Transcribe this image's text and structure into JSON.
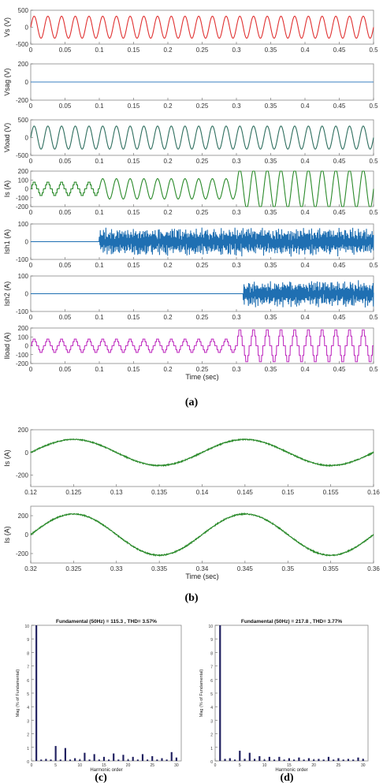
{
  "chart_data": [
    {
      "type": "line",
      "ylabel": "Vs (V)",
      "xlim": [
        0,
        0.5
      ],
      "ylim": [
        -500,
        500
      ],
      "yticks": [
        -500,
        0,
        500
      ],
      "xticks": [
        0,
        0.05,
        0.1,
        0.15,
        0.2,
        0.25,
        0.3,
        0.35,
        0.4,
        0.45,
        0.5
      ],
      "xticklabels": [
        "0",
        "0.05",
        "0.1",
        "0.15",
        "0.2",
        "0.25",
        "0.3",
        "0.35",
        "0.4",
        "0.45",
        "0.5"
      ],
      "color": "#e03030",
      "waveform": "sine",
      "freq_hz": 50,
      "amplitude": [
        [
          0,
          0.5,
          325
        ]
      ],
      "noise": 0,
      "start": 0
    },
    {
      "type": "line",
      "ylabel": "Vsag (V)",
      "xlim": [
        0,
        0.5
      ],
      "ylim": [
        -200,
        200
      ],
      "yticks": [
        -200,
        0,
        200
      ],
      "xticks": [
        0,
        0.05,
        0.1,
        0.15,
        0.2,
        0.25,
        0.3,
        0.35,
        0.4,
        0.45,
        0.5
      ],
      "xticklabels": [
        "0",
        "0.05",
        "0.1",
        "0.15",
        "0.2",
        "0.25",
        "0.3",
        "0.35",
        "0.4",
        "0.45",
        "0.5"
      ],
      "color": "#3a7fc0",
      "waveform": "flat",
      "value": 0,
      "start": 0
    },
    {
      "type": "line",
      "ylabel": "Vload (V)",
      "xlim": [
        0,
        0.5
      ],
      "ylim": [
        -500,
        500
      ],
      "yticks": [
        -500,
        0,
        500
      ],
      "xticks": [
        0,
        0.05,
        0.1,
        0.15,
        0.2,
        0.25,
        0.3,
        0.35,
        0.4,
        0.45,
        0.5
      ],
      "xticklabels": [
        "0",
        "0.05",
        "0.1",
        "0.15",
        "0.2",
        "0.25",
        "0.3",
        "0.35",
        "0.4",
        "0.45",
        "0.5"
      ],
      "color": "#2e6e5e",
      "waveform": "sine",
      "freq_hz": 50,
      "amplitude": [
        [
          0,
          0.5,
          325
        ]
      ],
      "noise": 0,
      "start": 0
    },
    {
      "type": "line",
      "ylabel": "Is (A)",
      "xlim": [
        0,
        0.5
      ],
      "ylim": [
        -200,
        200
      ],
      "yticks": [
        -200,
        -100,
        0,
        100,
        200
      ],
      "xticks": [
        0,
        0.05,
        0.1,
        0.15,
        0.2,
        0.25,
        0.3,
        0.35,
        0.4,
        0.45,
        0.5
      ],
      "xticklabels": [
        "0",
        "0.05",
        "0.1",
        "0.15",
        "0.2",
        "0.25",
        "0.3",
        "0.35",
        "0.4",
        "0.45",
        "0.5"
      ],
      "color": "#2a8a2a",
      "waveform": "segments",
      "segments": [
        {
          "t0": 0,
          "t1": 0.1,
          "kind": "square",
          "amp": 75
        },
        {
          "t0": 0.1,
          "t1": 0.3,
          "kind": "sine",
          "amp": 115
        },
        {
          "t0": 0.3,
          "t1": 0.5,
          "kind": "sine",
          "amp": 218
        }
      ],
      "freq_hz": 50,
      "start": 0
    },
    {
      "type": "line",
      "ylabel": "Ish1 (A)",
      "xlim": [
        0,
        0.5
      ],
      "ylim": [
        -100,
        100
      ],
      "yticks": [
        -100,
        0,
        100
      ],
      "xticks": [
        0,
        0.05,
        0.1,
        0.15,
        0.2,
        0.25,
        0.3,
        0.35,
        0.4,
        0.45,
        0.5
      ],
      "xticklabels": [
        "0",
        "0.05",
        "0.1",
        "0.15",
        "0.2",
        "0.25",
        "0.3",
        "0.35",
        "0.4",
        "0.45",
        "0.5"
      ],
      "color": "#1f6fb2",
      "waveform": "ripple",
      "start": 0.1,
      "amp": 80
    },
    {
      "type": "line",
      "ylabel": "Ish2 (A)",
      "xlim": [
        0,
        0.5
      ],
      "ylim": [
        -100,
        100
      ],
      "yticks": [
        -100,
        0,
        100
      ],
      "xticks": [
        0,
        0.05,
        0.1,
        0.15,
        0.2,
        0.25,
        0.3,
        0.35,
        0.4,
        0.45,
        0.5
      ],
      "xticklabels": [
        "0",
        "0.05",
        "0.1",
        "0.15",
        "0.2",
        "0.25",
        "0.3",
        "0.35",
        "0.4",
        "0.45",
        "0.5"
      ],
      "color": "#1f6fb2",
      "waveform": "ripple",
      "start": 0.31,
      "amp": 75
    },
    {
      "type": "line",
      "ylabel": "Iload (A)",
      "xlabel": "Time (sec)",
      "xlim": [
        0,
        0.5
      ],
      "ylim": [
        -200,
        200
      ],
      "yticks": [
        -200,
        -100,
        0,
        100,
        200
      ],
      "xticks": [
        0,
        0.05,
        0.1,
        0.15,
        0.2,
        0.25,
        0.3,
        0.35,
        0.4,
        0.45,
        0.5
      ],
      "xticklabels": [
        "0",
        "0.05",
        "0.1",
        "0.15",
        "0.2",
        "0.25",
        "0.3",
        "0.35",
        "0.4",
        "0.45",
        "0.5"
      ],
      "color": "#c030c0",
      "waveform": "segments",
      "segments": [
        {
          "t0": 0,
          "t1": 0.3,
          "kind": "square",
          "amp": 75
        },
        {
          "t0": 0.3,
          "t1": 0.5,
          "kind": "square",
          "amp": 180
        }
      ],
      "freq_hz": 50,
      "start": 0
    },
    {
      "type": "line",
      "ylabel": "Is (A)",
      "xlim": [
        0.12,
        0.16
      ],
      "ylim": [
        -300,
        200
      ],
      "yticks": [
        -200,
        0,
        200
      ],
      "xticks": [
        0.12,
        0.125,
        0.13,
        0.135,
        0.14,
        0.145,
        0.15,
        0.155,
        0.16
      ],
      "xticklabels": [
        "0.12",
        "0.125",
        "0.13",
        "0.135",
        "0.14",
        "0.145",
        "0.15",
        "0.155",
        "0.16"
      ],
      "color": "#2a8a2a",
      "waveform": "sine",
      "freq_hz": 50,
      "amplitude": [
        [
          0,
          1,
          115
        ]
      ],
      "noise": 4,
      "start": 0
    },
    {
      "type": "line",
      "ylabel": "Is (A)",
      "xlabel": "Time (sec)",
      "xlim": [
        0.32,
        0.36
      ],
      "ylim": [
        -300,
        300
      ],
      "yticks": [
        -200,
        0,
        200
      ],
      "xticks": [
        0.32,
        0.325,
        0.33,
        0.335,
        0.34,
        0.345,
        0.35,
        0.355,
        0.36
      ],
      "xticklabels": [
        "0.32",
        "0.325",
        "0.33",
        "0.335",
        "0.34",
        "0.345",
        "0.35",
        "0.355",
        "0.36"
      ],
      "color": "#2a8a2a",
      "waveform": "sine",
      "freq_hz": 50,
      "amplitude": [
        [
          0,
          1,
          218
        ]
      ],
      "noise": 5,
      "start": 0
    },
    {
      "type": "bar",
      "title": "Fundamental (50Hz) = 115.3 , THD= 3.57%",
      "xlabel": "Harmonic order",
      "ylabel": "Mag (% of Fundamental)",
      "xlim": [
        0,
        31
      ],
      "ylim": [
        0,
        10
      ],
      "yticks": [
        0,
        1,
        2,
        3,
        4,
        5,
        6,
        7,
        8,
        9,
        10
      ],
      "xticks": [
        0,
        5,
        10,
        15,
        20,
        25,
        30
      ],
      "categories": [
        1,
        2,
        3,
        4,
        5,
        6,
        7,
        8,
        9,
        10,
        11,
        12,
        13,
        14,
        15,
        16,
        17,
        18,
        19,
        20,
        21,
        22,
        23,
        24,
        25,
        26,
        27,
        28,
        29,
        30
      ],
      "values": [
        10,
        0.1,
        0.15,
        0.1,
        1.1,
        0.1,
        0.95,
        0.1,
        0.2,
        0.1,
        0.6,
        0.1,
        0.5,
        0.1,
        0.3,
        0.1,
        0.55,
        0.1,
        0.45,
        0.1,
        0.3,
        0.1,
        0.5,
        0.1,
        0.35,
        0.1,
        0.2,
        0.1,
        0.65,
        0.25
      ]
    },
    {
      "type": "bar",
      "title": "Fundamental (50Hz) = 217.8 , THD= 3.77%",
      "xlabel": "Harmonic order",
      "ylabel": "Mag (% of Fundamental)",
      "xlim": [
        0,
        31
      ],
      "ylim": [
        0,
        10
      ],
      "yticks": [
        0,
        1,
        2,
        3,
        4,
        5,
        6,
        7,
        8,
        9,
        10
      ],
      "xticks": [
        0,
        5,
        10,
        15,
        20,
        25,
        30
      ],
      "categories": [
        1,
        2,
        3,
        4,
        5,
        6,
        7,
        8,
        9,
        10,
        11,
        12,
        13,
        14,
        15,
        16,
        17,
        18,
        19,
        20,
        21,
        22,
        23,
        24,
        25,
        26,
        27,
        28,
        29,
        30
      ],
      "values": [
        10,
        0.15,
        0.2,
        0.1,
        0.75,
        0.15,
        0.6,
        0.15,
        0.35,
        0.1,
        0.3,
        0.1,
        0.3,
        0.1,
        0.2,
        0.1,
        0.25,
        0.1,
        0.2,
        0.1,
        0.15,
        0.1,
        0.3,
        0.1,
        0.2,
        0.1,
        0.15,
        0.1,
        0.25,
        0.15
      ]
    }
  ],
  "captions": {
    "a": "(a)",
    "b": "(b)",
    "c": "(c)",
    "d": "(d)"
  }
}
